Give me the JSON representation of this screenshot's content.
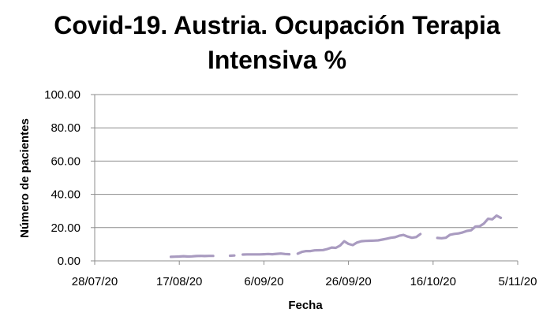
{
  "chart_data": {
    "type": "line",
    "title_line1": "Covid-19. Austria. Ocupación Terapia",
    "title_line2": "Intensiva %",
    "xlabel": "Fecha",
    "ylabel": "Número de pacientes",
    "ylim": [
      0,
      100
    ],
    "y_ticks": [
      "0.00",
      "20.00",
      "40.00",
      "60.00",
      "80.00",
      "100.00"
    ],
    "x_ticks": [
      "28/07/20",
      "17/08/20",
      "6/09/20",
      "26/09/20",
      "16/10/20",
      "5/11/20"
    ],
    "grid": true,
    "legend": "none",
    "series_color": "#a99bc0",
    "series": [
      {
        "points": [
          [
            "2020-08-15",
            2.4
          ],
          [
            "2020-08-16",
            2.5
          ],
          [
            "2020-08-17",
            2.6
          ],
          [
            "2020-08-18",
            2.8
          ],
          [
            "2020-08-19",
            2.6
          ],
          [
            "2020-08-20",
            2.7
          ],
          [
            "2020-08-21",
            2.9
          ],
          [
            "2020-08-22",
            3.0
          ],
          [
            "2020-08-23",
            2.9
          ],
          [
            "2020-08-24",
            3.0
          ],
          [
            "2020-08-25",
            3.0
          ],
          null,
          [
            "2020-08-29",
            3.1
          ],
          [
            "2020-08-30",
            3.2
          ],
          null,
          [
            "2020-09-01",
            3.8
          ],
          [
            "2020-09-02",
            3.9
          ],
          [
            "2020-09-03",
            3.9
          ],
          [
            "2020-09-04",
            3.9
          ],
          [
            "2020-09-05",
            3.9
          ],
          [
            "2020-09-06",
            4.0
          ],
          [
            "2020-09-07",
            4.1
          ],
          [
            "2020-09-08",
            4.0
          ],
          [
            "2020-09-09",
            4.2
          ],
          [
            "2020-09-10",
            4.4
          ],
          [
            "2020-09-11",
            4.1
          ],
          [
            "2020-09-12",
            4.0
          ],
          null,
          [
            "2020-09-14",
            4.3
          ],
          [
            "2020-09-15",
            5.4
          ],
          [
            "2020-09-16",
            5.9
          ],
          [
            "2020-09-17",
            5.9
          ],
          [
            "2020-09-18",
            6.3
          ],
          [
            "2020-09-19",
            6.4
          ],
          [
            "2020-09-20",
            6.5
          ],
          [
            "2020-09-21",
            7.1
          ],
          [
            "2020-09-22",
            8.0
          ],
          [
            "2020-09-23",
            7.8
          ],
          [
            "2020-09-24",
            9.2
          ],
          [
            "2020-09-25",
            11.8
          ],
          [
            "2020-09-26",
            10.2
          ],
          [
            "2020-09-27",
            9.5
          ],
          [
            "2020-09-28",
            11.0
          ],
          [
            "2020-09-29",
            11.8
          ],
          [
            "2020-09-30",
            12.0
          ],
          [
            "2020-10-01",
            12.1
          ],
          [
            "2020-10-02",
            12.2
          ],
          [
            "2020-10-03",
            12.3
          ],
          [
            "2020-10-04",
            12.8
          ],
          [
            "2020-10-05",
            13.3
          ],
          [
            "2020-10-06",
            13.9
          ],
          [
            "2020-10-07",
            14.2
          ],
          [
            "2020-10-08",
            15.1
          ],
          [
            "2020-10-09",
            15.6
          ],
          [
            "2020-10-10",
            14.6
          ],
          [
            "2020-10-11",
            13.9
          ],
          [
            "2020-10-12",
            14.3
          ],
          [
            "2020-10-13",
            16.1
          ],
          null,
          [
            "2020-10-17",
            13.8
          ],
          [
            "2020-10-18",
            13.6
          ],
          [
            "2020-10-19",
            13.9
          ],
          [
            "2020-10-20",
            15.7
          ],
          [
            "2020-10-21",
            16.2
          ],
          [
            "2020-10-22",
            16.5
          ],
          [
            "2020-10-23",
            17.1
          ],
          [
            "2020-10-24",
            18.0
          ],
          [
            "2020-10-25",
            18.4
          ],
          [
            "2020-10-26",
            20.6
          ],
          [
            "2020-10-27",
            20.8
          ],
          [
            "2020-10-28",
            22.4
          ],
          [
            "2020-10-29",
            25.3
          ],
          [
            "2020-10-30",
            25.0
          ],
          [
            "2020-10-31",
            27.2
          ],
          [
            "2020-11-01",
            25.9
          ]
        ]
      }
    ]
  }
}
